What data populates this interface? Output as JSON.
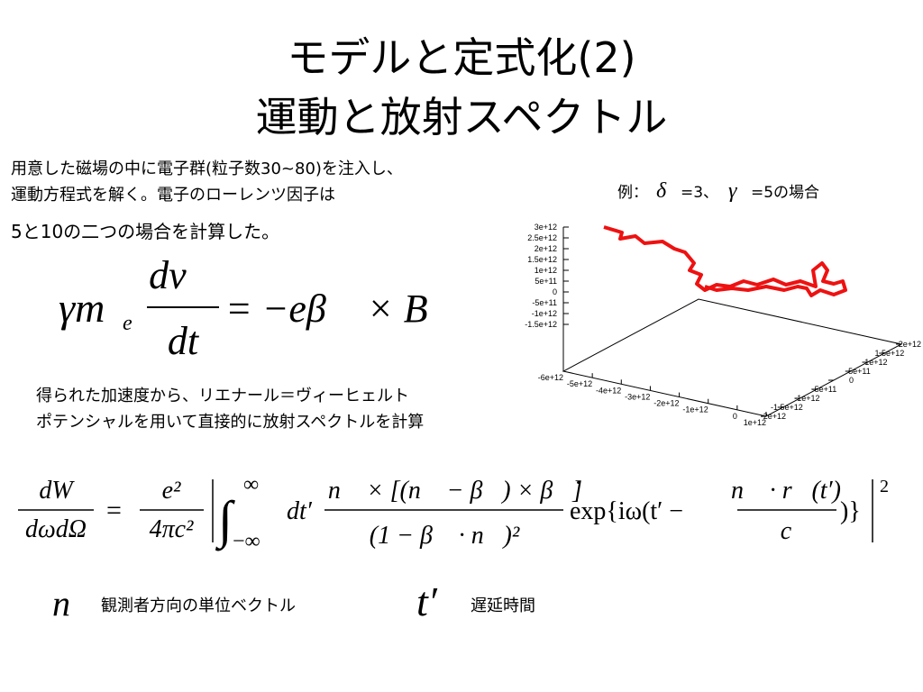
{
  "title": {
    "line1": "モデルと定式化(2)",
    "line2": "運動と放射スペクトル"
  },
  "intro": [
    "用意した磁場の中に電子群(粒子数30~80)を注入し、",
    "運動方程式を解く。電子のローレンツ因子は",
    "5と10の二つの場合を計算した。"
  ],
  "eq1": {
    "gamma_m": "γm",
    "sub": "e",
    "num": "dv⃗",
    "den": "dt",
    "rhs": "= −eβ⃗ × B⃗"
  },
  "text2": [
    "得られた加速度から、リエナール＝ヴィーヒェルト",
    "ポテンシャルを用いて直接的に放射スペクトルを計算"
  ],
  "plot": {
    "caption": [
      "例：",
      "δ",
      "=3、",
      "γ",
      "=5の場合"
    ],
    "zticks": [
      "3e+12",
      "2.5e+12",
      "2e+12",
      "1.5e+12",
      "1e+12",
      "5e+11",
      "0",
      "-5e+11",
      "-1e+12",
      "-1.5e+12"
    ],
    "xticks": [
      "-6e+12",
      "-5e+12",
      "-4e+12",
      "-3e+12",
      "-2e+12",
      "-1e+12",
      "0",
      "1e+12"
    ],
    "yticks": [
      "-2e+12",
      "-1.5e+12",
      "-1e+12",
      "-5e+11",
      "0",
      "5e+11",
      "1e+12",
      "1.5e+12",
      "2e+12"
    ]
  },
  "eq2": {
    "lhs_num": "dW",
    "lhs_den": "dωdΩ",
    "eq": "=",
    "c_num": "e²",
    "c_den": "4πc²",
    "int_top": "∞",
    "int_bottom": "−∞",
    "dt": "dt′",
    "f_num": "n⃗ × [(n⃗ − β⃗) × β⃗̇]",
    "f_den": "(1 − β⃗ · n⃗)²",
    "exp": "exp{iω(t′ −",
    "g_num": "n⃗ · r⃗(t′)",
    "g_den": "c",
    "close": ")}",
    "power": "2"
  },
  "legend": [
    {
      "symbol": "n⃗",
      "text": "観測者方向の単位ベクトル"
    },
    {
      "symbol": "t′",
      "text": "遅延時間"
    }
  ]
}
